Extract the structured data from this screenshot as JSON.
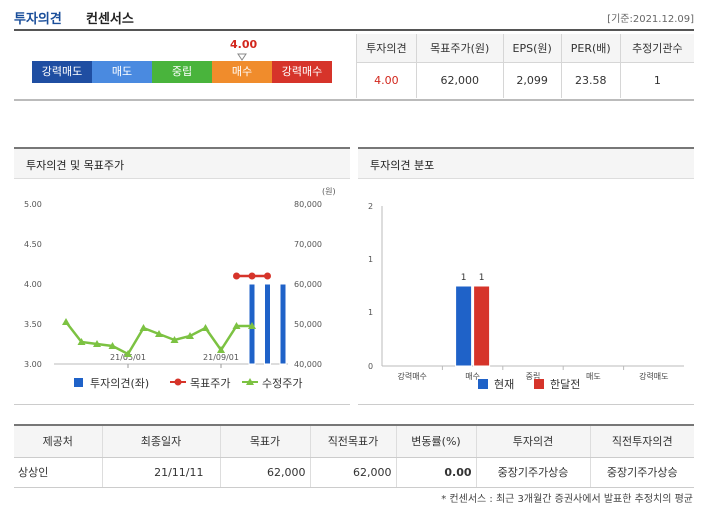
{
  "header": {
    "title_main": "투자의견",
    "title_sub": "컨센서스",
    "date": "[기준:2021.12.09]"
  },
  "opinion_bar": {
    "value": "4.00",
    "score": 4.0,
    "segments": [
      {
        "label": "강력매도",
        "color": "#1f4ea2"
      },
      {
        "label": "매도",
        "color": "#4a8ae0"
      },
      {
        "label": "중립",
        "color": "#49b43c"
      },
      {
        "label": "매수",
        "color": "#f08c2c"
      },
      {
        "label": "강력매수",
        "color": "#d6342a"
      }
    ]
  },
  "summary": {
    "headers": [
      "투자의견",
      "목표주가(원)",
      "EPS(원)",
      "PER(배)",
      "추정기관수"
    ],
    "values": [
      "4.00",
      "62,000",
      "2,099",
      "23.58",
      "1"
    ]
  },
  "chart_left_title": "투자의견 및 목표주가",
  "chart_right_title": "투자의견 분포",
  "chart_data": [
    {
      "type": "line",
      "title": "투자의견 및 목표주가",
      "y_left_ticks": [
        "5.00",
        "4.50",
        "4.00",
        "3.50",
        "3.00"
      ],
      "y_left_lim": [
        3.0,
        5.0
      ],
      "y_right_ticks": [
        "80,000",
        "70,000",
        "60,000",
        "50,000",
        "40,000"
      ],
      "y_right_lim": [
        40000,
        80000
      ],
      "y_right_unit": "(원)",
      "x_ticks": [
        "21/05/01",
        "21/09/01"
      ],
      "series": [
        {
          "name": "투자의견(좌)",
          "kind": "bar",
          "color": "#1f62c8",
          "x_index": [
            12,
            13,
            14
          ],
          "values": [
            4.0,
            4.0,
            4.0
          ]
        },
        {
          "name": "목표주가",
          "kind": "line",
          "color": "#d6342a",
          "x_index": [
            11,
            12,
            13
          ],
          "values": [
            62000,
            62000,
            62000
          ]
        },
        {
          "name": "수정주가",
          "kind": "line",
          "color": "#7cc242",
          "x_index": [
            0,
            1,
            2,
            3,
            4,
            5,
            6,
            7,
            8,
            9,
            10,
            11,
            12
          ],
          "values": [
            50500,
            45500,
            45000,
            44500,
            42500,
            49000,
            47500,
            46000,
            47000,
            49000,
            43500,
            49500,
            49500
          ]
        }
      ],
      "legend": [
        "투자의견(좌)",
        "목표주가",
        "수정주가"
      ],
      "legend_position": "bottom"
    },
    {
      "type": "bar",
      "title": "투자의견 분포",
      "categories": [
        "강력매수",
        "매수",
        "중립",
        "매도",
        "강력매도"
      ],
      "y_ticks": [
        "2",
        "1",
        "1",
        "0"
      ],
      "y_lim": [
        0,
        2
      ],
      "series": [
        {
          "name": "현재",
          "color": "#1f62c8",
          "values": [
            0,
            1,
            0,
            0,
            0
          ]
        },
        {
          "name": "한달전",
          "color": "#d6342a",
          "values": [
            0,
            1,
            0,
            0,
            0
          ]
        }
      ],
      "legend_position": "bottom"
    }
  ],
  "detail": {
    "headers": [
      "제공처",
      "최종일자",
      "목표가",
      "직전목표가",
      "변동률(%)",
      "투자의견",
      "직전투자의견"
    ],
    "rows": [
      [
        "상상인",
        "21/11/11",
        "62,000",
        "62,000",
        "0.00",
        "중장기주가상승",
        "중장기주가상승"
      ]
    ]
  },
  "footnote": "* 컨센서스 : 최근 3개월간 증권사에서 발표한 추정치의 평균"
}
